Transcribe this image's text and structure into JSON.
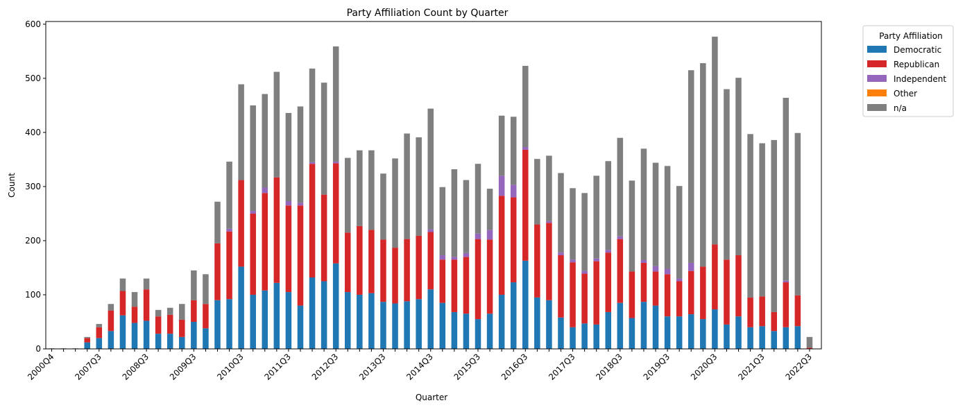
{
  "chart_data": {
    "type": "bar",
    "stacked": true,
    "title": "Party Affiliation Count by Quarter",
    "xlabel": "Quarter",
    "ylabel": "Count",
    "ylim": [
      0,
      605
    ],
    "yticks": [
      0,
      100,
      200,
      300,
      400,
      500,
      600
    ],
    "grid": false,
    "legend": {
      "title": "Party Affiliation",
      "placement": "outside-top-right"
    },
    "xtick_labels": [
      "2000Q4",
      "2007Q3",
      "2008Q3",
      "2009Q3",
      "2010Q3",
      "2011Q3",
      "2012Q3",
      "2013Q3",
      "2014Q3",
      "2015Q3",
      "2016Q3",
      "2017Q3",
      "2018Q3",
      "2019Q3",
      "2020Q3",
      "2021Q3",
      "2022Q3"
    ],
    "xtick_indices": [
      0,
      4,
      8,
      12,
      16,
      20,
      24,
      28,
      32,
      36,
      40,
      44,
      48,
      52,
      56,
      60,
      64
    ],
    "bar_count": 65,
    "series": [
      {
        "name": "Democratic",
        "color": "#1f77b4",
        "values": [
          0,
          0,
          0,
          12,
          20,
          33,
          62,
          48,
          52,
          28,
          28,
          22,
          50,
          38,
          90,
          92,
          152,
          100,
          108,
          122,
          105,
          80,
          132,
          125,
          158,
          105,
          100,
          103,
          87,
          84,
          88,
          92,
          110,
          85,
          68,
          65,
          55,
          65,
          100,
          123,
          163,
          95,
          90,
          58,
          40,
          47,
          45,
          68,
          85,
          57,
          87,
          80,
          60,
          60,
          64,
          55,
          73,
          45,
          60,
          40,
          42,
          33,
          40,
          42,
          0
        ]
      },
      {
        "name": "Republican",
        "color": "#d62728",
        "values": [
          0,
          0,
          0,
          8,
          20,
          38,
          45,
          30,
          58,
          32,
          35,
          32,
          40,
          45,
          105,
          125,
          160,
          150,
          180,
          195,
          160,
          185,
          210,
          160,
          185,
          110,
          127,
          117,
          115,
          103,
          115,
          117,
          106,
          80,
          97,
          105,
          148,
          137,
          183,
          157,
          205,
          135,
          143,
          115,
          120,
          92,
          117,
          110,
          118,
          86,
          72,
          63,
          78,
          65,
          80,
          97,
          120,
          120,
          113,
          55,
          55,
          35,
          83,
          57,
          2
        ]
      },
      {
        "name": "Independent",
        "color": "#9467bd",
        "values": [
          0,
          0,
          0,
          0,
          0,
          0,
          0,
          0,
          0,
          0,
          0,
          0,
          0,
          0,
          0,
          5,
          0,
          5,
          10,
          0,
          8,
          5,
          3,
          0,
          3,
          0,
          0,
          0,
          0,
          0,
          0,
          0,
          5,
          8,
          5,
          7,
          10,
          18,
          37,
          23,
          5,
          0,
          3,
          5,
          5,
          5,
          5,
          5,
          5,
          0,
          5,
          10,
          10,
          5,
          15,
          0,
          0,
          0,
          0,
          0,
          0,
          0,
          3,
          0,
          0
        ]
      },
      {
        "name": "Other",
        "color": "#ff7f0e",
        "values": [
          0,
          0,
          0,
          0,
          0,
          0,
          0,
          0,
          0,
          0,
          0,
          0,
          0,
          0,
          0,
          0,
          0,
          0,
          0,
          0,
          0,
          0,
          0,
          0,
          0,
          0,
          0,
          0,
          0,
          0,
          0,
          0,
          0,
          0,
          0,
          0,
          0,
          0,
          0,
          0,
          0,
          0,
          0,
          0,
          0,
          0,
          0,
          0,
          0,
          0,
          0,
          0,
          0,
          0,
          0,
          0,
          0,
          0,
          0,
          0,
          0,
          0,
          0,
          0,
          0
        ]
      },
      {
        "name": "n/a",
        "color": "#7f7f7f",
        "values": [
          1,
          1,
          1,
          2,
          6,
          12,
          23,
          27,
          20,
          12,
          13,
          29,
          55,
          55,
          77,
          124,
          177,
          195,
          173,
          195,
          163,
          178,
          173,
          207,
          213,
          138,
          140,
          147,
          122,
          165,
          195,
          182,
          223,
          126,
          162,
          135,
          129,
          76,
          111,
          126,
          150,
          121,
          121,
          147,
          132,
          144,
          153,
          164,
          182,
          168,
          206,
          191,
          190,
          171,
          356,
          376,
          384,
          315,
          328,
          302,
          283,
          318,
          338,
          300,
          20
        ]
      }
    ]
  }
}
